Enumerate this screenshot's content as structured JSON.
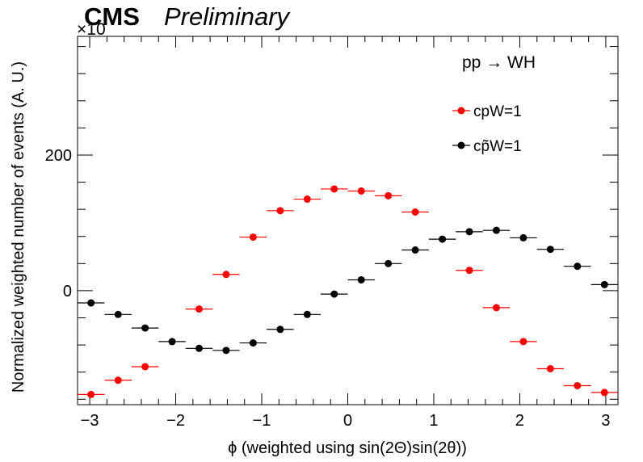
{
  "header": {
    "experiment": "CMS",
    "status": "Preliminary",
    "exponent_label": "×10"
  },
  "legend_title": "pp → WH",
  "chart_data": {
    "type": "scatter",
    "xlabel": "ϕ (weighted using sin(2Θ)sin(2θ))",
    "ylabel": "Normalized weighted number of events (A. U.)",
    "xlim": [
      -3.1416,
      3.1416
    ],
    "ylim": [
      -168,
      375
    ],
    "xticks": [
      -3,
      -2,
      -1,
      0,
      1,
      2,
      3
    ],
    "xtick_labels": [
      "−3",
      "−2",
      "−1",
      "0",
      "1",
      "2",
      "3"
    ],
    "yticks": [
      0,
      200
    ],
    "ytick_labels": [
      "0",
      "200"
    ],
    "grid": false,
    "legend_position": "top-right",
    "bin_half_width": 0.1571,
    "series": [
      {
        "name": "cpW=1",
        "color": "#ff0000",
        "x": [
          -2.985,
          -2.67,
          -2.356,
          -2.042,
          -1.728,
          -1.414,
          -1.1,
          -0.785,
          -0.471,
          -0.157,
          0.157,
          0.471,
          0.785,
          1.1,
          1.414,
          1.728,
          2.042,
          2.356,
          2.67,
          2.985
        ],
        "y": [
          -153,
          -132,
          -112,
          null,
          -27,
          24,
          79,
          118,
          135,
          150,
          147,
          140,
          116,
          null,
          30,
          -25,
          -75,
          -115,
          -140,
          -150
        ]
      },
      {
        "name": "cp̃W=1",
        "color": "#000000",
        "x": [
          -2.985,
          -2.67,
          -2.356,
          -2.042,
          -1.728,
          -1.414,
          -1.1,
          -0.785,
          -0.471,
          -0.157,
          0.157,
          0.471,
          0.785,
          1.1,
          1.414,
          1.728,
          2.042,
          2.356,
          2.67,
          2.985
        ],
        "y": [
          -18,
          -35,
          -55,
          -75,
          -85,
          -88,
          -77,
          -57,
          -35,
          -5,
          16,
          40,
          60,
          76,
          87,
          89,
          78,
          61,
          36,
          9
        ]
      }
    ]
  }
}
